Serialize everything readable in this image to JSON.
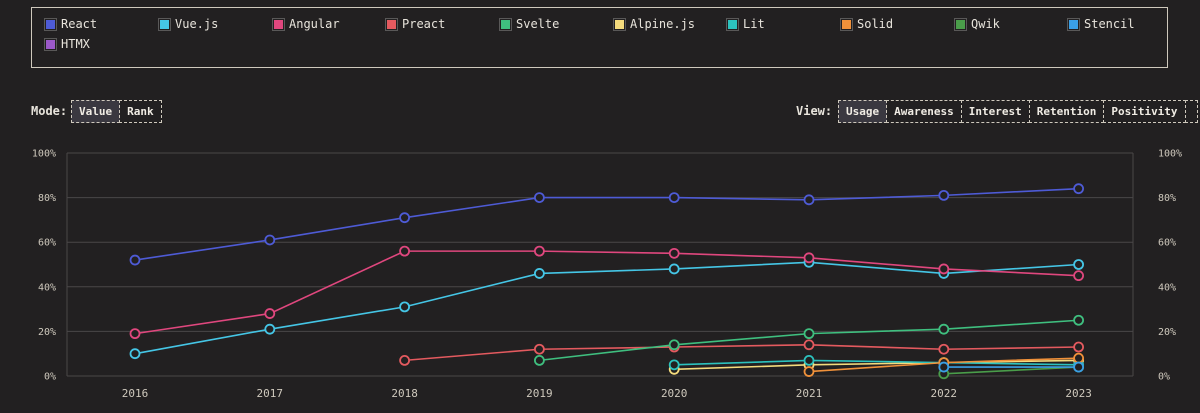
{
  "legend": [
    {
      "name": "React",
      "color": "#4e5bd6"
    },
    {
      "name": "Vue.js",
      "color": "#45c6e6"
    },
    {
      "name": "Angular",
      "color": "#e0477e"
    },
    {
      "name": "Preact",
      "color": "#e45a5f"
    },
    {
      "name": "Svelte",
      "color": "#3fbf7f"
    },
    {
      "name": "Alpine.js",
      "color": "#f4db7d"
    },
    {
      "name": "Lit",
      "color": "#2cc2be"
    },
    {
      "name": "Solid",
      "color": "#f0913a"
    },
    {
      "name": "Qwik",
      "color": "#4a9d4a"
    },
    {
      "name": "Stencil",
      "color": "#3a9fe6"
    },
    {
      "name": "HTMX",
      "color": "#9b59c9"
    }
  ],
  "mode": {
    "label": "Mode:",
    "options": [
      "Value",
      "Rank"
    ],
    "active": "Value"
  },
  "view": {
    "label": "View:",
    "options": [
      "Usage",
      "Awareness",
      "Interest",
      "Retention",
      "Positivity",
      ""
    ],
    "active": "Usage"
  },
  "chart_data": {
    "type": "line",
    "x": [
      "2016",
      "2017",
      "2018",
      "2019",
      "2020",
      "2021",
      "2022",
      "2023"
    ],
    "ylim": [
      0,
      100
    ],
    "yticks": [
      "0%",
      "20%",
      "40%",
      "60%",
      "80%",
      "100%"
    ],
    "grid": true,
    "legend_position": "top",
    "series": [
      {
        "name": "React",
        "color": "#4e5bd6",
        "values": [
          52,
          61,
          71,
          80,
          80,
          79,
          81,
          84
        ]
      },
      {
        "name": "Vue.js",
        "color": "#45c6e6",
        "values": [
          10,
          21,
          31,
          46,
          48,
          51,
          46,
          50
        ]
      },
      {
        "name": "Angular",
        "color": "#e0477e",
        "values": [
          19,
          28,
          56,
          56,
          55,
          53,
          48,
          45
        ]
      },
      {
        "name": "Preact",
        "color": "#e45a5f",
        "values": [
          null,
          null,
          7,
          12,
          13,
          14,
          12,
          13
        ]
      },
      {
        "name": "Svelte",
        "color": "#3fbf7f",
        "values": [
          null,
          null,
          null,
          7,
          14,
          19,
          21,
          25
        ]
      },
      {
        "name": "Alpine.js",
        "color": "#f4db7d",
        "values": [
          null,
          null,
          null,
          null,
          3,
          5,
          6,
          7
        ]
      },
      {
        "name": "Lit",
        "color": "#2cc2be",
        "values": [
          null,
          null,
          null,
          null,
          5,
          7,
          6,
          5
        ]
      },
      {
        "name": "Solid",
        "color": "#f0913a",
        "values": [
          null,
          null,
          null,
          null,
          null,
          2,
          6,
          8
        ]
      },
      {
        "name": "Qwik",
        "color": "#4a9d4a",
        "values": [
          null,
          null,
          null,
          null,
          null,
          null,
          1,
          4
        ]
      },
      {
        "name": "Stencil",
        "color": "#3a9fe6",
        "values": [
          null,
          null,
          null,
          null,
          null,
          null,
          4,
          4
        ]
      }
    ]
  }
}
